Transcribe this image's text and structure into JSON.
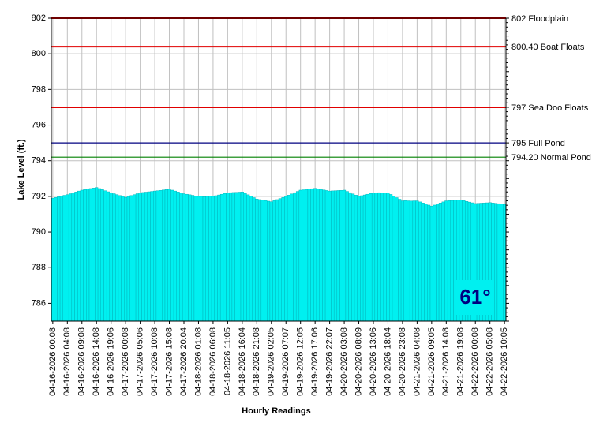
{
  "chart_data": {
    "type": "bar",
    "y_label": "Lake Level (ft.)",
    "x_label": "Hourly Readings",
    "annotation": "61°",
    "color": "#00f0f0",
    "ylim": [
      785,
      802
    ],
    "yticks": [
      786,
      788,
      790,
      792,
      794,
      796,
      798,
      800,
      802
    ],
    "grid": true,
    "reference_lines": [
      {
        "value": 802,
        "label": "802 Floodplain",
        "color": "#e00000"
      },
      {
        "value": 800.4,
        "label": "800.40 Boat Floats",
        "color": "#e00000"
      },
      {
        "value": 797,
        "label": "797 Sea Doo Floats",
        "color": "#e00000"
      },
      {
        "value": 795,
        "label": "795 Full Pond",
        "color": "#000080"
      },
      {
        "value": 794.2,
        "label": "794.20 Normal Pond",
        "color": "#008000"
      }
    ],
    "categories": [
      "04-16-2026 00:08",
      null,
      null,
      null,
      null,
      "04-16-2026 04:08",
      null,
      null,
      null,
      null,
      "04-16-2026 09:08",
      null,
      null,
      null,
      null,
      "04-16-2026 14:08",
      null,
      null,
      null,
      null,
      "04-16-2026 19:06",
      null,
      null,
      null,
      null,
      "04-17-2026 00:08",
      null,
      null,
      null,
      null,
      "04-17-2026 05:06",
      null,
      null,
      null,
      null,
      "04-17-2026 10:08",
      null,
      null,
      null,
      null,
      "04-17-2026 15:08",
      null,
      null,
      null,
      null,
      "04-17-2026 20:04",
      null,
      null,
      null,
      null,
      "04-18-2026 01:08",
      null,
      null,
      null,
      null,
      "04-18-2026 06:08",
      null,
      null,
      null,
      null,
      "04-18-2026 11:05",
      null,
      null,
      null,
      null,
      "04-18-2026 16:04",
      null,
      null,
      null,
      null,
      "04-18-2026 21:08",
      null,
      null,
      null,
      null,
      "04-19-2026 02:05",
      null,
      null,
      null,
      null,
      "04-19-2026 07:07",
      null,
      null,
      null,
      null,
      "04-19-2026 12:05",
      null,
      null,
      null,
      null,
      "04-19-2026 17:06",
      null,
      null,
      null,
      null,
      "04-19-2026 22:07",
      null,
      null,
      null,
      null,
      "04-20-2026 03:08",
      null,
      null,
      null,
      null,
      "04-20-2026 08:09",
      null,
      null,
      null,
      null,
      "04-20-2026 13:06",
      null,
      null,
      null,
      null,
      "04-20-2026 18:04",
      null,
      null,
      null,
      null,
      "04-20-2026 23:08",
      null,
      null,
      null,
      null,
      "04-21-2026 04:08",
      null,
      null,
      null,
      null,
      "04-21-2026 09:05",
      null,
      null,
      null,
      null,
      "04-21-2026 14:08",
      null,
      null,
      null,
      null,
      "04-21-2026 19:08",
      null,
      null,
      null,
      null,
      "04-22-2026 00:08",
      null,
      null,
      null,
      null,
      "04-22-2026 05:08",
      null,
      null,
      null,
      null,
      "04-22-2026 10:05"
    ],
    "values": [
      791.9,
      791.94,
      791.98,
      792.02,
      792.06,
      792.1,
      792.15,
      792.2,
      792.25,
      792.3,
      792.35,
      792.38,
      792.41,
      792.44,
      792.47,
      792.5,
      792.44,
      792.38,
      792.32,
      792.26,
      792.2,
      792.15,
      792.1,
      792.05,
      792.0,
      791.95,
      792.0,
      792.05,
      792.1,
      792.15,
      792.2,
      792.22,
      792.24,
      792.26,
      792.28,
      792.3,
      792.32,
      792.34,
      792.36,
      792.38,
      792.4,
      792.35,
      792.3,
      792.25,
      792.2,
      792.15,
      792.12,
      792.09,
      792.06,
      792.03,
      792.0,
      792.0,
      791.98,
      792.0,
      792.01,
      792.0,
      792.04,
      792.08,
      792.12,
      792.16,
      792.2,
      792.21,
      792.22,
      792.23,
      792.24,
      792.25,
      792.17,
      792.09,
      792.01,
      791.93,
      791.85,
      791.82,
      791.79,
      791.76,
      791.73,
      791.7,
      791.76,
      791.82,
      791.88,
      791.94,
      792.0,
      792.07,
      792.14,
      792.21,
      792.28,
      792.35,
      792.37,
      792.39,
      792.41,
      792.43,
      792.45,
      792.42,
      792.39,
      792.36,
      792.33,
      792.3,
      792.31,
      792.32,
      792.33,
      792.34,
      792.35,
      792.28,
      792.21,
      792.14,
      792.07,
      792.0,
      792.04,
      792.08,
      792.12,
      792.16,
      792.2,
      792.2,
      792.21,
      792.2,
      792.2,
      792.2,
      792.11,
      792.02,
      791.93,
      791.84,
      791.75,
      791.76,
      791.75,
      791.74,
      791.75,
      791.75,
      791.69,
      791.63,
      791.57,
      791.51,
      791.45,
      791.51,
      791.57,
      791.63,
      791.69,
      791.75,
      791.76,
      791.77,
      791.78,
      791.79,
      791.8,
      791.76,
      791.72,
      791.68,
      791.64,
      791.6,
      791.61,
      791.62,
      791.63,
      791.64,
      791.65,
      791.63,
      791.61,
      791.59,
      791.57,
      791.55
    ]
  }
}
